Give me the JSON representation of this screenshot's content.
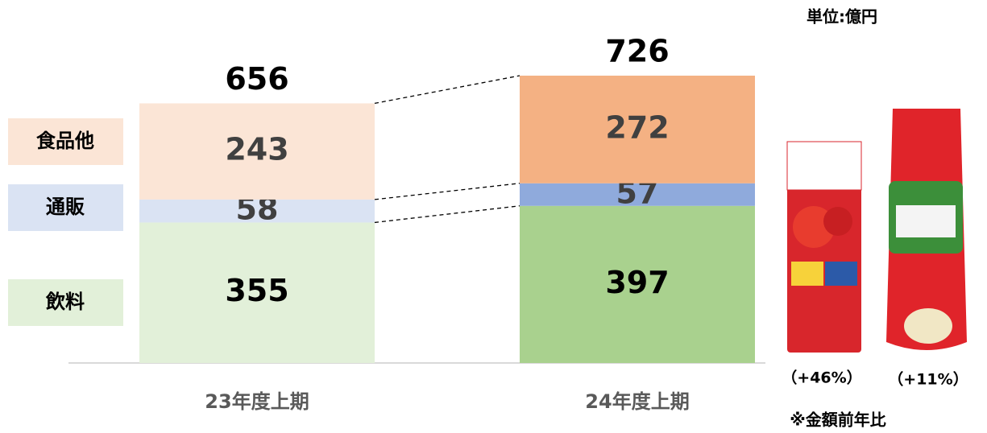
{
  "chart_data": {
    "type": "stacked_bar",
    "unit": "単位:億円",
    "categories": [
      "23年度上期",
      "24年度上期"
    ],
    "series": [
      {
        "name": "飲料",
        "colors": [
          "#e2f0d9",
          "#a9d18e"
        ],
        "values": [
          355,
          397
        ]
      },
      {
        "name": "通販",
        "colors": [
          "#dae3f3",
          "#8faadc"
        ],
        "values": [
          58,
          57
        ]
      },
      {
        "name": "食品他",
        "colors": [
          "#fbe5d6",
          "#f4b183"
        ],
        "values": [
          243,
          272
        ]
      }
    ],
    "totals": [
      656,
      726
    ],
    "growth_labels": [
      "（+46%）",
      "（+11%）"
    ],
    "note": "※金額前年比"
  }
}
